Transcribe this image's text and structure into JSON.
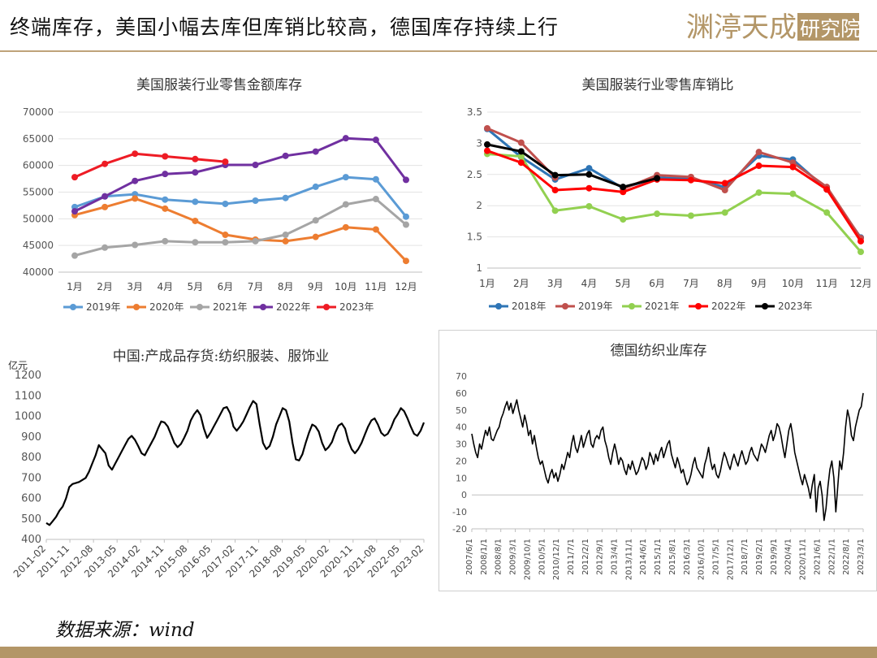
{
  "page": {
    "title": "终端库存，美国小幅去库但库销比较高，德国库存持续上行",
    "source": "数据来源：wind",
    "logo_text": "渊渟天成研究院",
    "colors": {
      "gold": "#b39667"
    }
  },
  "chart_data": [
    {
      "id": "us_inventory",
      "type": "line",
      "title": "美国服装行业零售金额库存",
      "categories": [
        "1月",
        "2月",
        "3月",
        "4月",
        "5月",
        "6月",
        "7月",
        "8月",
        "9月",
        "10月",
        "11月",
        "12月"
      ],
      "y_ticks": [
        "40000",
        "45000",
        "50000",
        "55000",
        "60000",
        "65000",
        "70000"
      ],
      "ylim": [
        40000,
        70000
      ],
      "legend": "bottom",
      "series": [
        {
          "name": "2019年",
          "color": "#5b9bd5",
          "values": [
            52200,
            54200,
            54600,
            53600,
            53200,
            52800,
            53400,
            53900,
            56000,
            57800,
            57400,
            50400
          ]
        },
        {
          "name": "2020年",
          "color": "#ed7d31",
          "values": [
            50700,
            52200,
            53800,
            51900,
            49600,
            47000,
            46100,
            45800,
            46600,
            48400,
            48000,
            42100
          ]
        },
        {
          "name": "2021年",
          "color": "#a5a5a5",
          "values": [
            43100,
            44600,
            45100,
            45800,
            45600,
            45600,
            45800,
            47000,
            49700,
            52700,
            53700,
            48900
          ]
        },
        {
          "name": "2022年",
          "color": "#7030a0",
          "values": [
            51400,
            54200,
            57100,
            58400,
            58700,
            60100,
            60100,
            61800,
            62600,
            65100,
            64800,
            57300
          ]
        },
        {
          "name": "2023年",
          "color": "#ee1c25",
          "values": [
            57800,
            60300,
            62200,
            61700,
            61200,
            60700,
            null,
            null,
            null,
            null,
            null,
            null
          ]
        }
      ]
    },
    {
      "id": "us_ratio",
      "type": "line",
      "title": "美国服装行业零售库销比",
      "categories": [
        "1月",
        "2月",
        "3月",
        "4月",
        "5月",
        "6月",
        "7月",
        "8月",
        "9月",
        "10月",
        "11月",
        "12月"
      ],
      "y_ticks": [
        "1",
        "1.5",
        "2",
        "2.5",
        "3",
        "3.5"
      ],
      "ylim": [
        1,
        3.5
      ],
      "legend": "bottom",
      "series": [
        {
          "name": "2018年",
          "color": "#2e75b6",
          "values": [
            3.23,
            2.78,
            2.42,
            2.6,
            2.28,
            2.45,
            2.43,
            2.3,
            2.8,
            2.74,
            2.26,
            1.49
          ]
        },
        {
          "name": "2019年",
          "color": "#c0504d",
          "values": [
            3.24,
            3.01,
            2.45,
            null,
            2.27,
            2.49,
            2.46,
            2.25,
            2.86,
            2.69,
            2.3,
            1.48
          ]
        },
        {
          "name": "2021年",
          "color": "#92d050",
          "values": [
            2.83,
            2.79,
            1.92,
            1.99,
            1.78,
            1.87,
            1.84,
            1.89,
            2.21,
            2.19,
            1.89,
            1.26
          ]
        },
        {
          "name": "2022年",
          "color": "#ff0000",
          "values": [
            2.88,
            2.69,
            2.25,
            2.28,
            2.22,
            2.42,
            2.41,
            2.36,
            2.64,
            2.62,
            2.26,
            1.43
          ]
        },
        {
          "name": "2023年",
          "color": "#000000",
          "values": [
            2.98,
            2.87,
            2.49,
            2.5,
            2.3,
            2.44,
            null,
            null,
            null,
            null,
            null,
            null
          ]
        }
      ]
    },
    {
      "id": "cn_inventory",
      "type": "line",
      "title": "中国:产成品存货:纺织服装、服饰业",
      "ylabel": "亿元",
      "y_ticks": [
        "400",
        "500",
        "600",
        "700",
        "800",
        "900",
        "1000",
        "1100",
        "1200"
      ],
      "ylim": [
        400,
        1200
      ],
      "x_ticks": [
        "2011-02",
        "2011-11",
        "2012-08",
        "2013-05",
        "2014-02",
        "2014-11",
        "2015-08",
        "2016-05",
        "2017-02",
        "2017-11",
        "2018-08",
        "2019-05",
        "2020-02",
        "2020-11",
        "2021-08",
        "2022-05",
        "2023-02"
      ],
      "series": [
        {
          "name": "",
          "color": "#000000",
          "values": [
            480,
            470,
            490,
            510,
            540,
            560,
            600,
            655,
            670,
            675,
            680,
            690,
            700,
            730,
            770,
            810,
            860,
            840,
            820,
            760,
            740,
            770,
            800,
            830,
            860,
            890,
            905,
            885,
            855,
            820,
            810,
            840,
            870,
            900,
            940,
            975,
            970,
            950,
            910,
            870,
            850,
            865,
            895,
            930,
            980,
            1010,
            1030,
            1005,
            940,
            895,
            920,
            950,
            980,
            1010,
            1040,
            1045,
            1015,
            950,
            930,
            950,
            975,
            1010,
            1045,
            1075,
            1060,
            960,
            870,
            840,
            855,
            900,
            960,
            1000,
            1040,
            1030,
            975,
            870,
            790,
            785,
            815,
            870,
            920,
            960,
            950,
            925,
            870,
            835,
            850,
            875,
            920,
            955,
            965,
            940,
            880,
            840,
            820,
            840,
            870,
            910,
            950,
            980,
            990,
            960,
            920,
            905,
            915,
            945,
            985,
            1010,
            1040,
            1025,
            990,
            950,
            915,
            905,
            930,
            970
          ]
        }
      ]
    },
    {
      "id": "de_inventory",
      "type": "line",
      "title": "德国纺织业库存",
      "y_ticks": [
        "-20",
        "-10",
        "0",
        "10",
        "20",
        "30",
        "40",
        "50",
        "60",
        "70"
      ],
      "ylim": [
        -20,
        70
      ],
      "x_ticks": [
        "2007/6/1",
        "2008/1/1",
        "2008/8/1",
        "2009/3/1",
        "2009/10/1",
        "2010/5/1",
        "2010/12/1",
        "2011/7/1",
        "2012/2/1",
        "2012/9/1",
        "2013/4/1",
        "2013/11/1",
        "2014/6/1",
        "2015/1/1",
        "2015/8/1",
        "2016/3/1",
        "2016/10/1",
        "2017/5/1",
        "2017/12/1",
        "2018/7/1",
        "2019/2/1",
        "2019/9/1",
        "2020/4/1",
        "2020/11/1",
        "2021/6/1",
        "2022/1/1",
        "2022/8/1",
        "2023/3/1"
      ],
      "series": [
        {
          "name": "",
          "color": "#000000",
          "values": [
            36,
            30,
            25,
            22,
            30,
            27,
            33,
            38,
            35,
            40,
            33,
            32,
            35,
            38,
            40,
            45,
            48,
            52,
            55,
            50,
            54,
            48,
            52,
            56,
            50,
            45,
            40,
            47,
            42,
            35,
            38,
            30,
            35,
            28,
            22,
            18,
            20,
            15,
            10,
            7,
            12,
            15,
            10,
            13,
            8,
            12,
            18,
            15,
            20,
            25,
            22,
            30,
            35,
            28,
            25,
            30,
            35,
            28,
            32,
            36,
            38,
            30,
            28,
            33,
            35,
            33,
            38,
            40,
            32,
            28,
            22,
            18,
            25,
            30,
            25,
            18,
            22,
            20,
            15,
            12,
            18,
            15,
            20,
            16,
            12,
            14,
            18,
            22,
            20,
            15,
            18,
            25,
            22,
            18,
            24,
            20,
            25,
            28,
            22,
            26,
            30,
            32,
            24,
            20,
            16,
            22,
            18,
            13,
            15,
            10,
            6,
            8,
            12,
            18,
            22,
            16,
            14,
            12,
            10,
            18,
            22,
            28,
            20,
            15,
            18,
            12,
            10,
            14,
            20,
            25,
            22,
            18,
            15,
            20,
            24,
            20,
            17,
            22,
            26,
            22,
            18,
            20,
            25,
            28,
            24,
            22,
            20,
            25,
            30,
            28,
            25,
            30,
            35,
            38,
            32,
            36,
            42,
            40,
            35,
            28,
            22,
            30,
            38,
            42,
            35,
            25,
            20,
            15,
            10,
            6,
            12,
            8,
            4,
            -2,
            6,
            12,
            -10,
            4,
            8,
            0,
            -15,
            -8,
            5,
            15,
            20,
            10,
            -10,
            5,
            20,
            15,
            25,
            40,
            50,
            45,
            35,
            32,
            40,
            45,
            50,
            52,
            60
          ]
        }
      ]
    }
  ]
}
